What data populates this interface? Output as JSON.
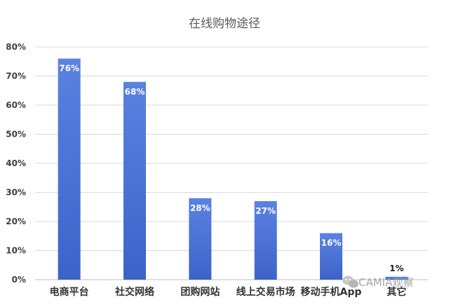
{
  "chart_data": {
    "type": "bar",
    "title": "在线购物途径",
    "categories": [
      "电商平台",
      "社交网络",
      "团购网站",
      "线上交易市场",
      "移动手机App",
      "其它"
    ],
    "values": [
      76,
      68,
      28,
      27,
      16,
      1
    ],
    "value_labels": [
      "76%",
      "68%",
      "28%",
      "27%",
      "16%",
      "1%"
    ],
    "yticks": [
      "0%",
      "10%",
      "20%",
      "30%",
      "40%",
      "50%",
      "60%",
      "70%",
      "80%"
    ],
    "ylim": [
      0,
      80
    ],
    "grid": true,
    "bar_color": "#3d63c9",
    "bar_color_light": "#5a82e0"
  },
  "watermark": {
    "text": "CAMIA观察",
    "icon": "wechat-icon"
  }
}
